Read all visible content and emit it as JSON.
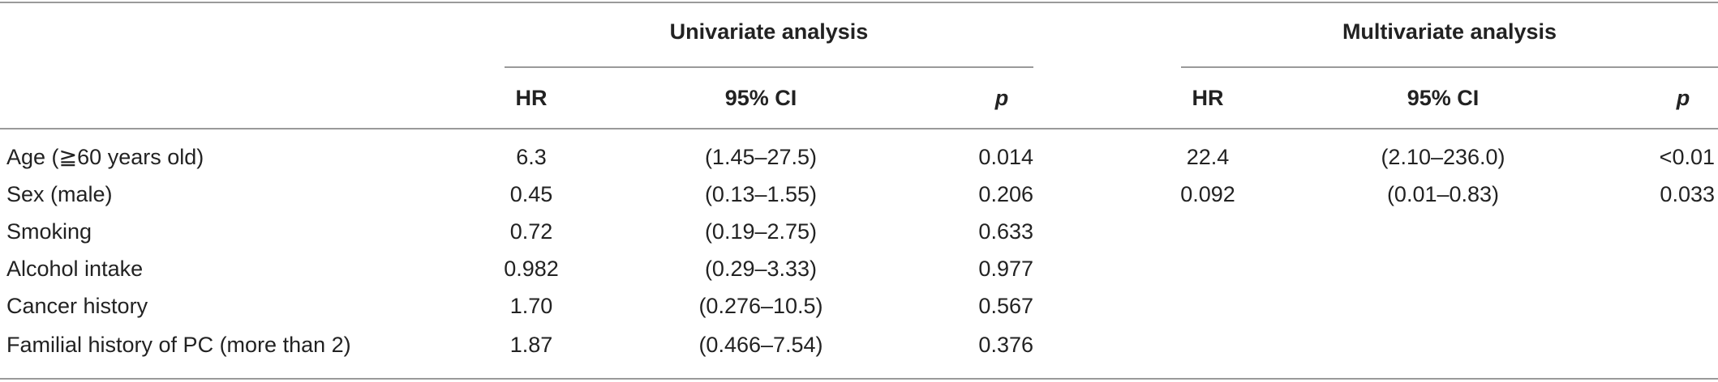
{
  "groups": {
    "univariate": "Univariate analysis",
    "multivariate": "Multivariate analysis"
  },
  "columns": {
    "hr": "HR",
    "ci": "95% CI",
    "p": "p"
  },
  "rows": [
    {
      "label": "Age (≧60 years old)",
      "uni_hr": "6.3",
      "uni_ci": "(1.45–27.5)",
      "uni_p": "0.014",
      "multi_hr": "22.4",
      "multi_ci": "(2.10–236.0)",
      "multi_p": "<0.01"
    },
    {
      "label": "Sex (male)",
      "uni_hr": "0.45",
      "uni_ci": "(0.13–1.55)",
      "uni_p": "0.206",
      "multi_hr": "0.092",
      "multi_ci": "(0.01–0.83)",
      "multi_p": "0.033"
    },
    {
      "label": "Smoking",
      "uni_hr": "0.72",
      "uni_ci": "(0.19–2.75)",
      "uni_p": "0.633",
      "multi_hr": "",
      "multi_ci": "",
      "multi_p": ""
    },
    {
      "label": "Alcohol intake",
      "uni_hr": "0.982",
      "uni_ci": "(0.29–3.33)",
      "uni_p": "0.977",
      "multi_hr": "",
      "multi_ci": "",
      "multi_p": ""
    },
    {
      "label": "Cancer history",
      "uni_hr": "1.70",
      "uni_ci": "(0.276–10.5)",
      "uni_p": "0.567",
      "multi_hr": "",
      "multi_ci": "",
      "multi_p": ""
    },
    {
      "label": "Familial history of PC (more than 2)",
      "uni_hr": "1.87",
      "uni_ci": "(0.466–7.54)",
      "uni_p": "0.376",
      "multi_hr": "",
      "multi_ci": "",
      "multi_p": ""
    }
  ]
}
